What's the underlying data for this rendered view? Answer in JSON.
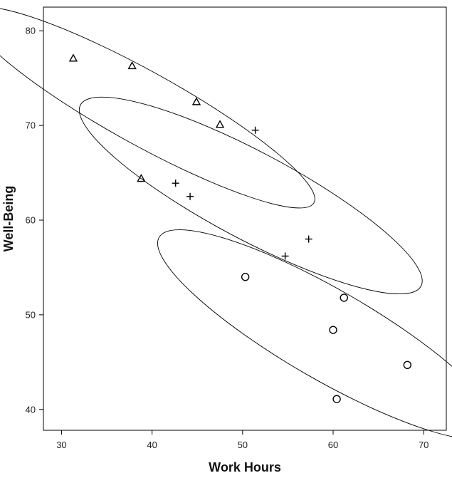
{
  "chart_data": {
    "type": "scatter",
    "title": "",
    "xlabel": "Work Hours",
    "ylabel": "Well-Being",
    "xlim": [
      28,
      72.5
    ],
    "ylim": [
      37.8,
      82.5
    ],
    "xticks": [
      30,
      40,
      50,
      60,
      70
    ],
    "yticks": [
      40,
      50,
      60,
      70,
      80
    ],
    "grid": false,
    "legend": "none",
    "series": [
      {
        "marker": "triangle",
        "color": "#000000",
        "points": [
          {
            "x": 31.3,
            "y": 77.1
          },
          {
            "x": 37.8,
            "y": 76.3
          },
          {
            "x": 44.9,
            "y": 72.5
          },
          {
            "x": 47.5,
            "y": 70.1
          },
          {
            "x": 38.8,
            "y": 64.4
          }
        ]
      },
      {
        "marker": "plus",
        "color": "#000000",
        "points": [
          {
            "x": 51.4,
            "y": 69.5
          },
          {
            "x": 42.6,
            "y": 63.9
          },
          {
            "x": 44.2,
            "y": 62.5
          },
          {
            "x": 57.3,
            "y": 58.0
          },
          {
            "x": 54.7,
            "y": 56.2
          }
        ]
      },
      {
        "marker": "circle",
        "color": "#000000",
        "points": [
          {
            "x": 50.3,
            "y": 54.0
          },
          {
            "x": 61.2,
            "y": 51.8
          },
          {
            "x": 60.0,
            "y": 48.4
          },
          {
            "x": 68.2,
            "y": 44.7
          },
          {
            "x": 60.4,
            "y": 41.1
          }
        ]
      }
    ],
    "ellipses": [
      {
        "cx": 38.9,
        "cy": 71.9,
        "rx_data": 21.7,
        "ry_data": 3.85,
        "angle_deg": 29
      },
      {
        "cx": 50.9,
        "cy": 62.6,
        "rx_data": 21.3,
        "ry_data": 4.6,
        "angle_deg": 28
      },
      {
        "cx": 59.4,
        "cy": 47.9,
        "rx_data": 21.5,
        "ry_data": 4.75,
        "angle_deg": 30
      }
    ]
  }
}
